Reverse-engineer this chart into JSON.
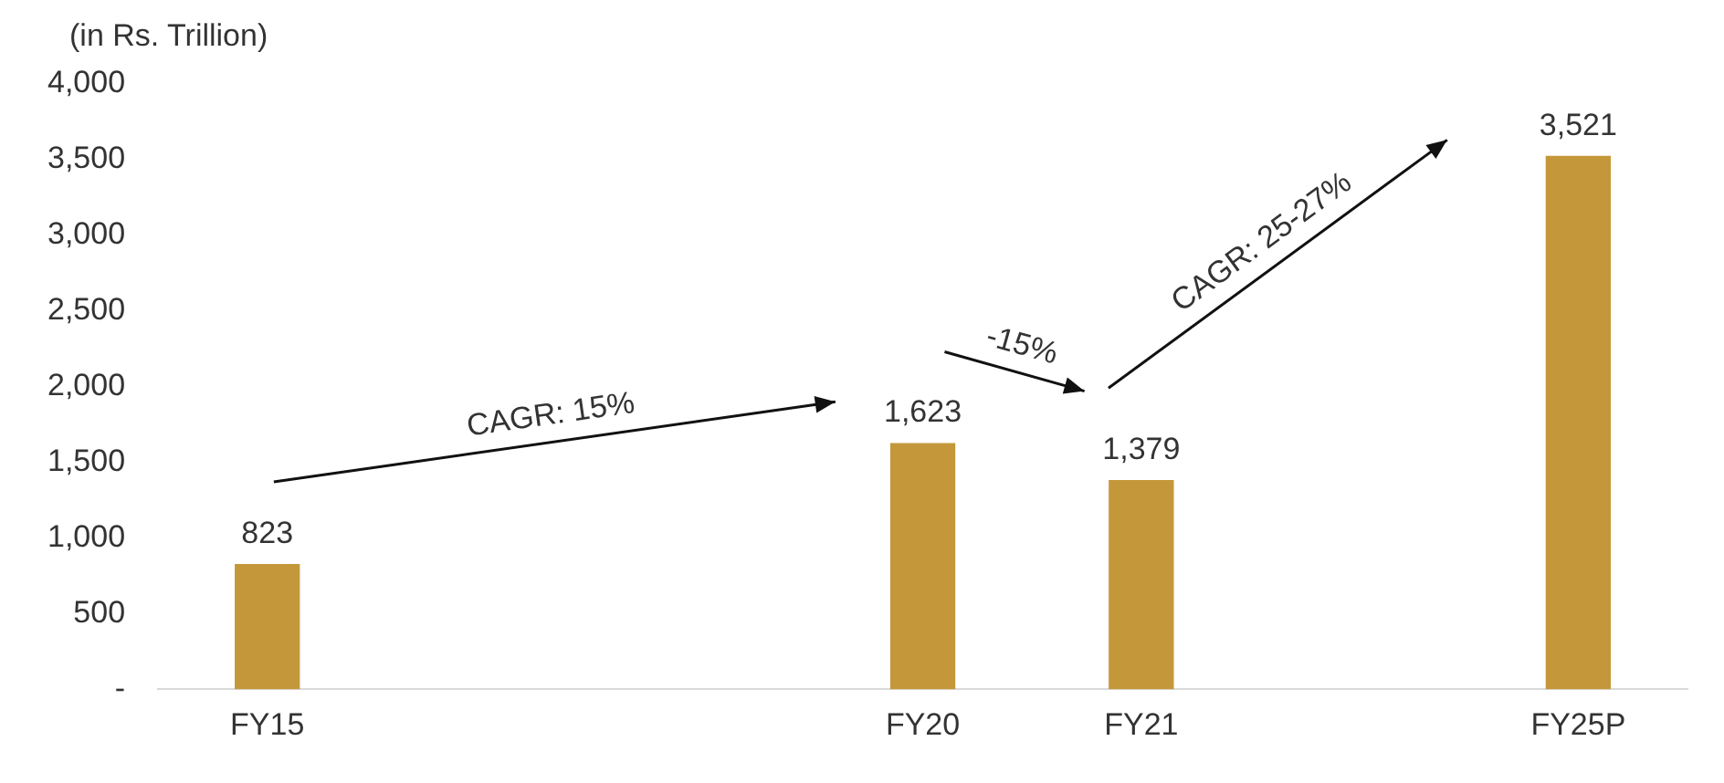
{
  "chart_data": {
    "type": "bar",
    "ylabel": "(in Rs. Trillion)",
    "categories": [
      "FY15",
      null,
      null,
      "FY20",
      "FY21",
      null,
      "FY25P"
    ],
    "values": [
      823,
      null,
      null,
      1623,
      1379,
      null,
      3521
    ],
    "value_labels": [
      "823",
      null,
      null,
      "1,623",
      "1,379",
      null,
      "3,521"
    ],
    "color": "#c4983a",
    "ylim": [
      0,
      4000
    ],
    "yticks": [
      {
        "value": 0,
        "label": "-"
      },
      {
        "value": 500,
        "label": "500"
      },
      {
        "value": 1000,
        "label": "1,000"
      },
      {
        "value": 1500,
        "label": "1,500"
      },
      {
        "value": 2000,
        "label": "2,000"
      },
      {
        "value": 2500,
        "label": "2,500"
      },
      {
        "value": 3000,
        "label": "3,000"
      },
      {
        "value": 3500,
        "label": "3,500"
      },
      {
        "value": 4000,
        "label": "4,000"
      }
    ],
    "annotations": [
      "CAGR: 15%",
      "-15%",
      "CAGR: 25-27%"
    ],
    "grid": false,
    "legend": false
  }
}
